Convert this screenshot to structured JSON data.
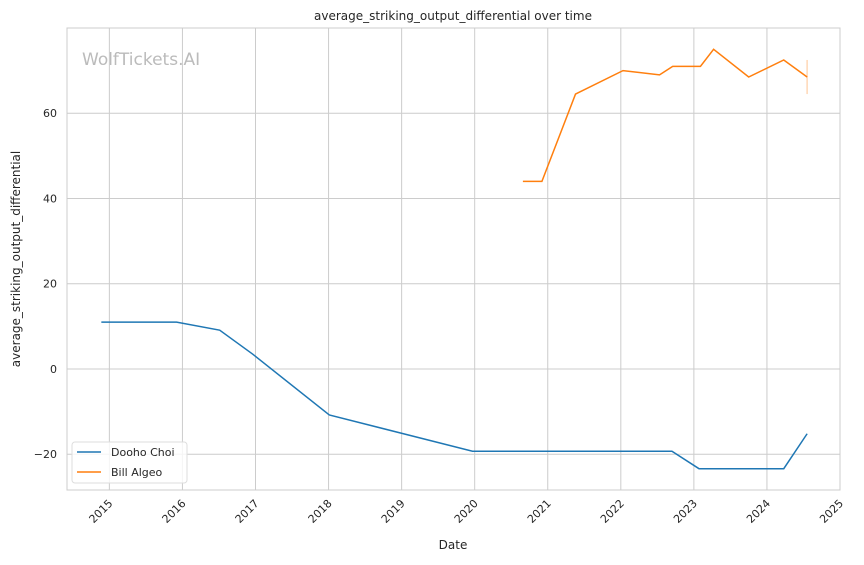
{
  "chart_data": {
    "type": "line",
    "title": "average_striking_output_differential over time",
    "xlabel": "Date",
    "ylabel": "average_striking_output_differential",
    "watermark": "WolfTickets.AI",
    "xlim": [
      2014.42,
      2025.0
    ],
    "ylim": [
      -28.4,
      80
    ],
    "xticks": [
      2015,
      2016,
      2017,
      2018,
      2019,
      2020,
      2021,
      2022,
      2023,
      2024,
      2025
    ],
    "yticks": [
      -20,
      0,
      20,
      40,
      60
    ],
    "grid": true,
    "legend_position": "bottom-left",
    "series": [
      {
        "name": "Dooho Choi",
        "color": "#1f77b4",
        "x": [
          2014.89,
          2015.92,
          2016.51,
          2016.96,
          2018.01,
          2019.97,
          2022.7,
          2023.07,
          2024.23,
          2024.55
        ],
        "y": [
          11,
          11,
          9.1,
          3.5,
          -10.8,
          -19.3,
          -19.3,
          -23.4,
          -23.4,
          -15.2
        ]
      },
      {
        "name": "Bill Algeo",
        "color": "#ff7f0e",
        "x": [
          2020.66,
          2020.92,
          2021.38,
          2022.03,
          2022.53,
          2022.71,
          2023.09,
          2023.27,
          2023.75,
          2024.23,
          2024.55
        ],
        "y": [
          44,
          44,
          64.5,
          70,
          69,
          71,
          71,
          75,
          68.5,
          72.5,
          68.5
        ],
        "band_at_end": [
          64.5,
          72.5
        ]
      }
    ]
  }
}
